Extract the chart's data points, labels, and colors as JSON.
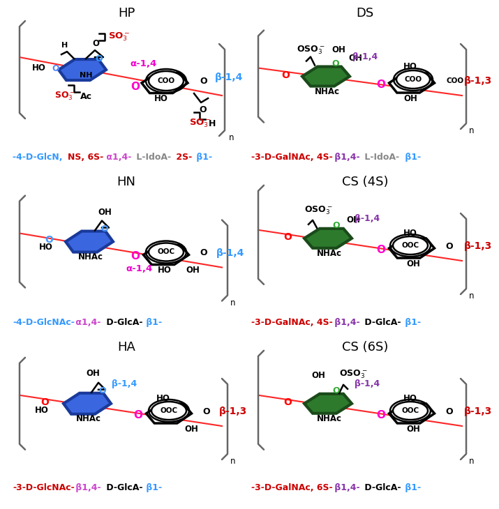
{
  "bg_color": "#ffffff",
  "panels": {
    "HP": {
      "title": "HP",
      "col": 0,
      "row": 0,
      "sugar1_color": "#2255cc",
      "sugar1_fill": "#3366dd",
      "sugar2_color": "black",
      "sugar2_fill": "white",
      "linkage1": "α-1,4",
      "linkage1_color": "#dd00bb",
      "linkage2": "β-1,4",
      "linkage2_color": "#3399ff",
      "caption": [
        {
          "t": "−4-D-GlcN, ",
          "c": "#3399ff"
        },
        {
          "t": "NS, 6S-",
          "c": "#cc0000"
        },
        {
          "t": " α1,4- ",
          "c": "#cc44cc"
        },
        {
          "t": "L-IdoA-",
          "c": "#888888"
        },
        {
          "t": " 2S-",
          "c": "#cc0000"
        },
        {
          "t": " β1-",
          "c": "#3399ff"
        }
      ]
    },
    "DS": {
      "title": "DS",
      "col": 1,
      "row": 0,
      "sugar1_color": "#1a5c1a",
      "sugar1_fill": "#2d7a2d",
      "sugar2_color": "black",
      "sugar2_fill": "white",
      "linkage1": "β-1,4",
      "linkage1_color": "#8833aa",
      "linkage2": "β-1,3",
      "linkage2_color": "#cc0000",
      "caption": [
        {
          "t": "−3-D-GalNAc, 4S-",
          "c": "#cc0000"
        },
        {
          "t": " β1,4- ",
          "c": "#8833aa"
        },
        {
          "t": "L-IdoA-",
          "c": "#888888"
        },
        {
          "t": " β1-",
          "c": "#3399ff"
        }
      ]
    },
    "HN": {
      "title": "HN",
      "col": 0,
      "row": 1,
      "sugar1_color": "#2255cc",
      "sugar1_fill": "#3366dd",
      "sugar2_color": "black",
      "sugar2_fill": "white",
      "linkage1": "α-1,4",
      "linkage1_color": "#dd00bb",
      "linkage2": "β-1,4",
      "linkage2_color": "#3399ff",
      "caption": [
        {
          "t": "−4-D-GlcNAc-",
          "c": "#3399ff"
        },
        {
          "t": " α1,4- ",
          "c": "#cc44cc"
        },
        {
          "t": "D-GlcA-",
          "c": "#000000"
        },
        {
          "t": " β1-",
          "c": "#3399ff"
        }
      ]
    },
    "CS4S": {
      "title": "CS (4S)",
      "col": 1,
      "row": 1,
      "sugar1_color": "#1a5c1a",
      "sugar1_fill": "#2d7a2d",
      "sugar2_color": "black",
      "sugar2_fill": "white",
      "linkage1": "β-1,4",
      "linkage1_color": "#8833aa",
      "linkage2": "β-1,3",
      "linkage2_color": "#cc0000",
      "caption": [
        {
          "t": "−3-D-GalNAc, 4S-",
          "c": "#cc0000"
        },
        {
          "t": " β1,4- ",
          "c": "#8833aa"
        },
        {
          "t": "D-GlcA-",
          "c": "#000000"
        },
        {
          "t": " β1-",
          "c": "#3399ff"
        }
      ]
    },
    "HA": {
      "title": "HA",
      "col": 0,
      "row": 2,
      "sugar1_color": "#2255cc",
      "sugar1_fill": "#3366dd",
      "sugar2_color": "black",
      "sugar2_fill": "white",
      "linkage1": "β-1,4",
      "linkage1_color": "#3399ff",
      "linkage2": "β-1,3",
      "linkage2_color": "#cc0000",
      "caption": [
        {
          "t": "−3-D-GlcNAc-",
          "c": "#cc0000"
        },
        {
          "t": " β1,4- ",
          "c": "#cc44cc"
        },
        {
          "t": "D-GlcA-",
          "c": "#000000"
        },
        {
          "t": " β1-",
          "c": "#3399ff"
        }
      ]
    },
    "CS6S": {
      "title": "CS (6S)",
      "col": 1,
      "row": 2,
      "sugar1_color": "#1a5c1a",
      "sugar1_fill": "#2d7a2d",
      "sugar2_color": "black",
      "sugar2_fill": "white",
      "linkage1": "β-1,4",
      "linkage1_color": "#8833aa",
      "linkage2": "β-1,3",
      "linkage2_color": "#cc0000",
      "caption": [
        {
          "t": "−3-D-GalNAc, 6S-",
          "c": "#cc0000"
        },
        {
          "t": " β1,4- ",
          "c": "#8833aa"
        },
        {
          "t": "D-GlcA-",
          "c": "#000000"
        },
        {
          "t": " β1-",
          "c": "#3399ff"
        }
      ]
    }
  }
}
